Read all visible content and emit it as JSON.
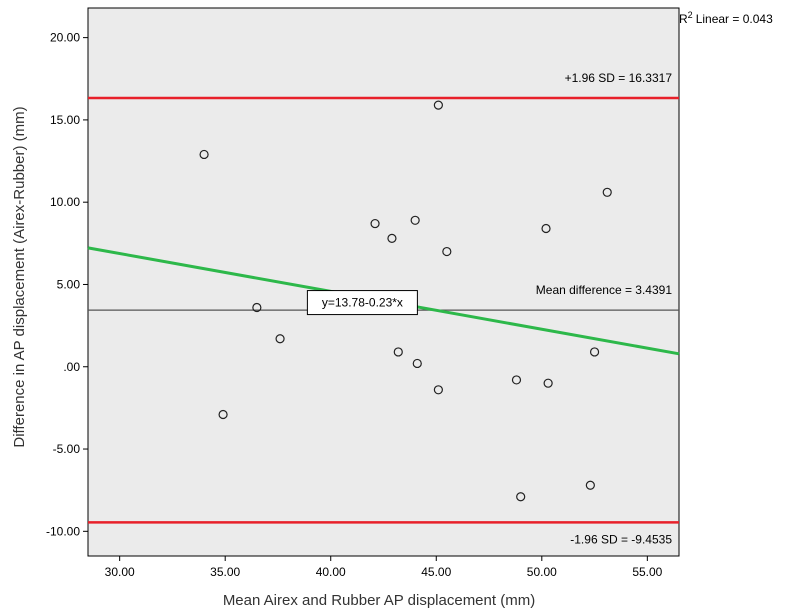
{
  "chart_data": {
    "type": "scatter",
    "xlabel": "Mean Airex and Rubber AP displacement (mm)",
    "ylabel": "Difference in AP displacement (Airex-Rubber) (mm)",
    "xlim": [
      28.5,
      56.5
    ],
    "ylim": [
      -11.5,
      21.8
    ],
    "x_ticks": [
      30,
      35,
      40,
      45,
      50,
      55
    ],
    "x_tick_labels": [
      "30.00",
      "35.00",
      "40.00",
      "45.00",
      "50.00",
      "55.00"
    ],
    "y_ticks": [
      20,
      15,
      10,
      5,
      0,
      -5,
      -10
    ],
    "y_tick_labels": [
      "20.00",
      "15.00",
      "10.00",
      "5.00",
      ".00",
      "-5.00",
      "-10.00"
    ],
    "grid": false,
    "points": [
      {
        "x": 34.0,
        "y": 12.9
      },
      {
        "x": 34.9,
        "y": -2.9
      },
      {
        "x": 36.5,
        "y": 3.6
      },
      {
        "x": 37.6,
        "y": 1.7
      },
      {
        "x": 42.1,
        "y": 8.7
      },
      {
        "x": 42.9,
        "y": 7.8
      },
      {
        "x": 43.2,
        "y": 0.9
      },
      {
        "x": 44.0,
        "y": 8.9
      },
      {
        "x": 44.1,
        "y": 0.2
      },
      {
        "x": 45.1,
        "y": 15.9
      },
      {
        "x": 45.1,
        "y": -1.4
      },
      {
        "x": 45.5,
        "y": 7.0
      },
      {
        "x": 48.8,
        "y": -0.8
      },
      {
        "x": 49.0,
        "y": -7.9
      },
      {
        "x": 50.2,
        "y": 8.4
      },
      {
        "x": 50.3,
        "y": -1.0
      },
      {
        "x": 52.3,
        "y": -7.2
      },
      {
        "x": 52.5,
        "y": 0.9
      },
      {
        "x": 53.1,
        "y": 10.6
      }
    ],
    "reference_lines": [
      {
        "y": 16.3317,
        "label": "+1.96 SD = 16.3317",
        "color": "#e8202a"
      },
      {
        "y": 3.4391,
        "label": "Mean difference = 3.4391",
        "color": "#555555"
      },
      {
        "y": -9.4535,
        "label": "-1.96 SD = -9.4535",
        "color": "#e8202a"
      }
    ],
    "fit_line": {
      "intercept": 13.78,
      "slope": -0.23,
      "label": "y=13.78-0.23*x",
      "label_x": 41.5,
      "label_y": 3.9,
      "color": "#2db84a"
    },
    "r2_label": "Linear = 0.043",
    "r2_prefix": "R",
    "r2_sup": "2",
    "colors": {
      "plot_background": "#ebebeb",
      "marker": "#222222"
    }
  }
}
